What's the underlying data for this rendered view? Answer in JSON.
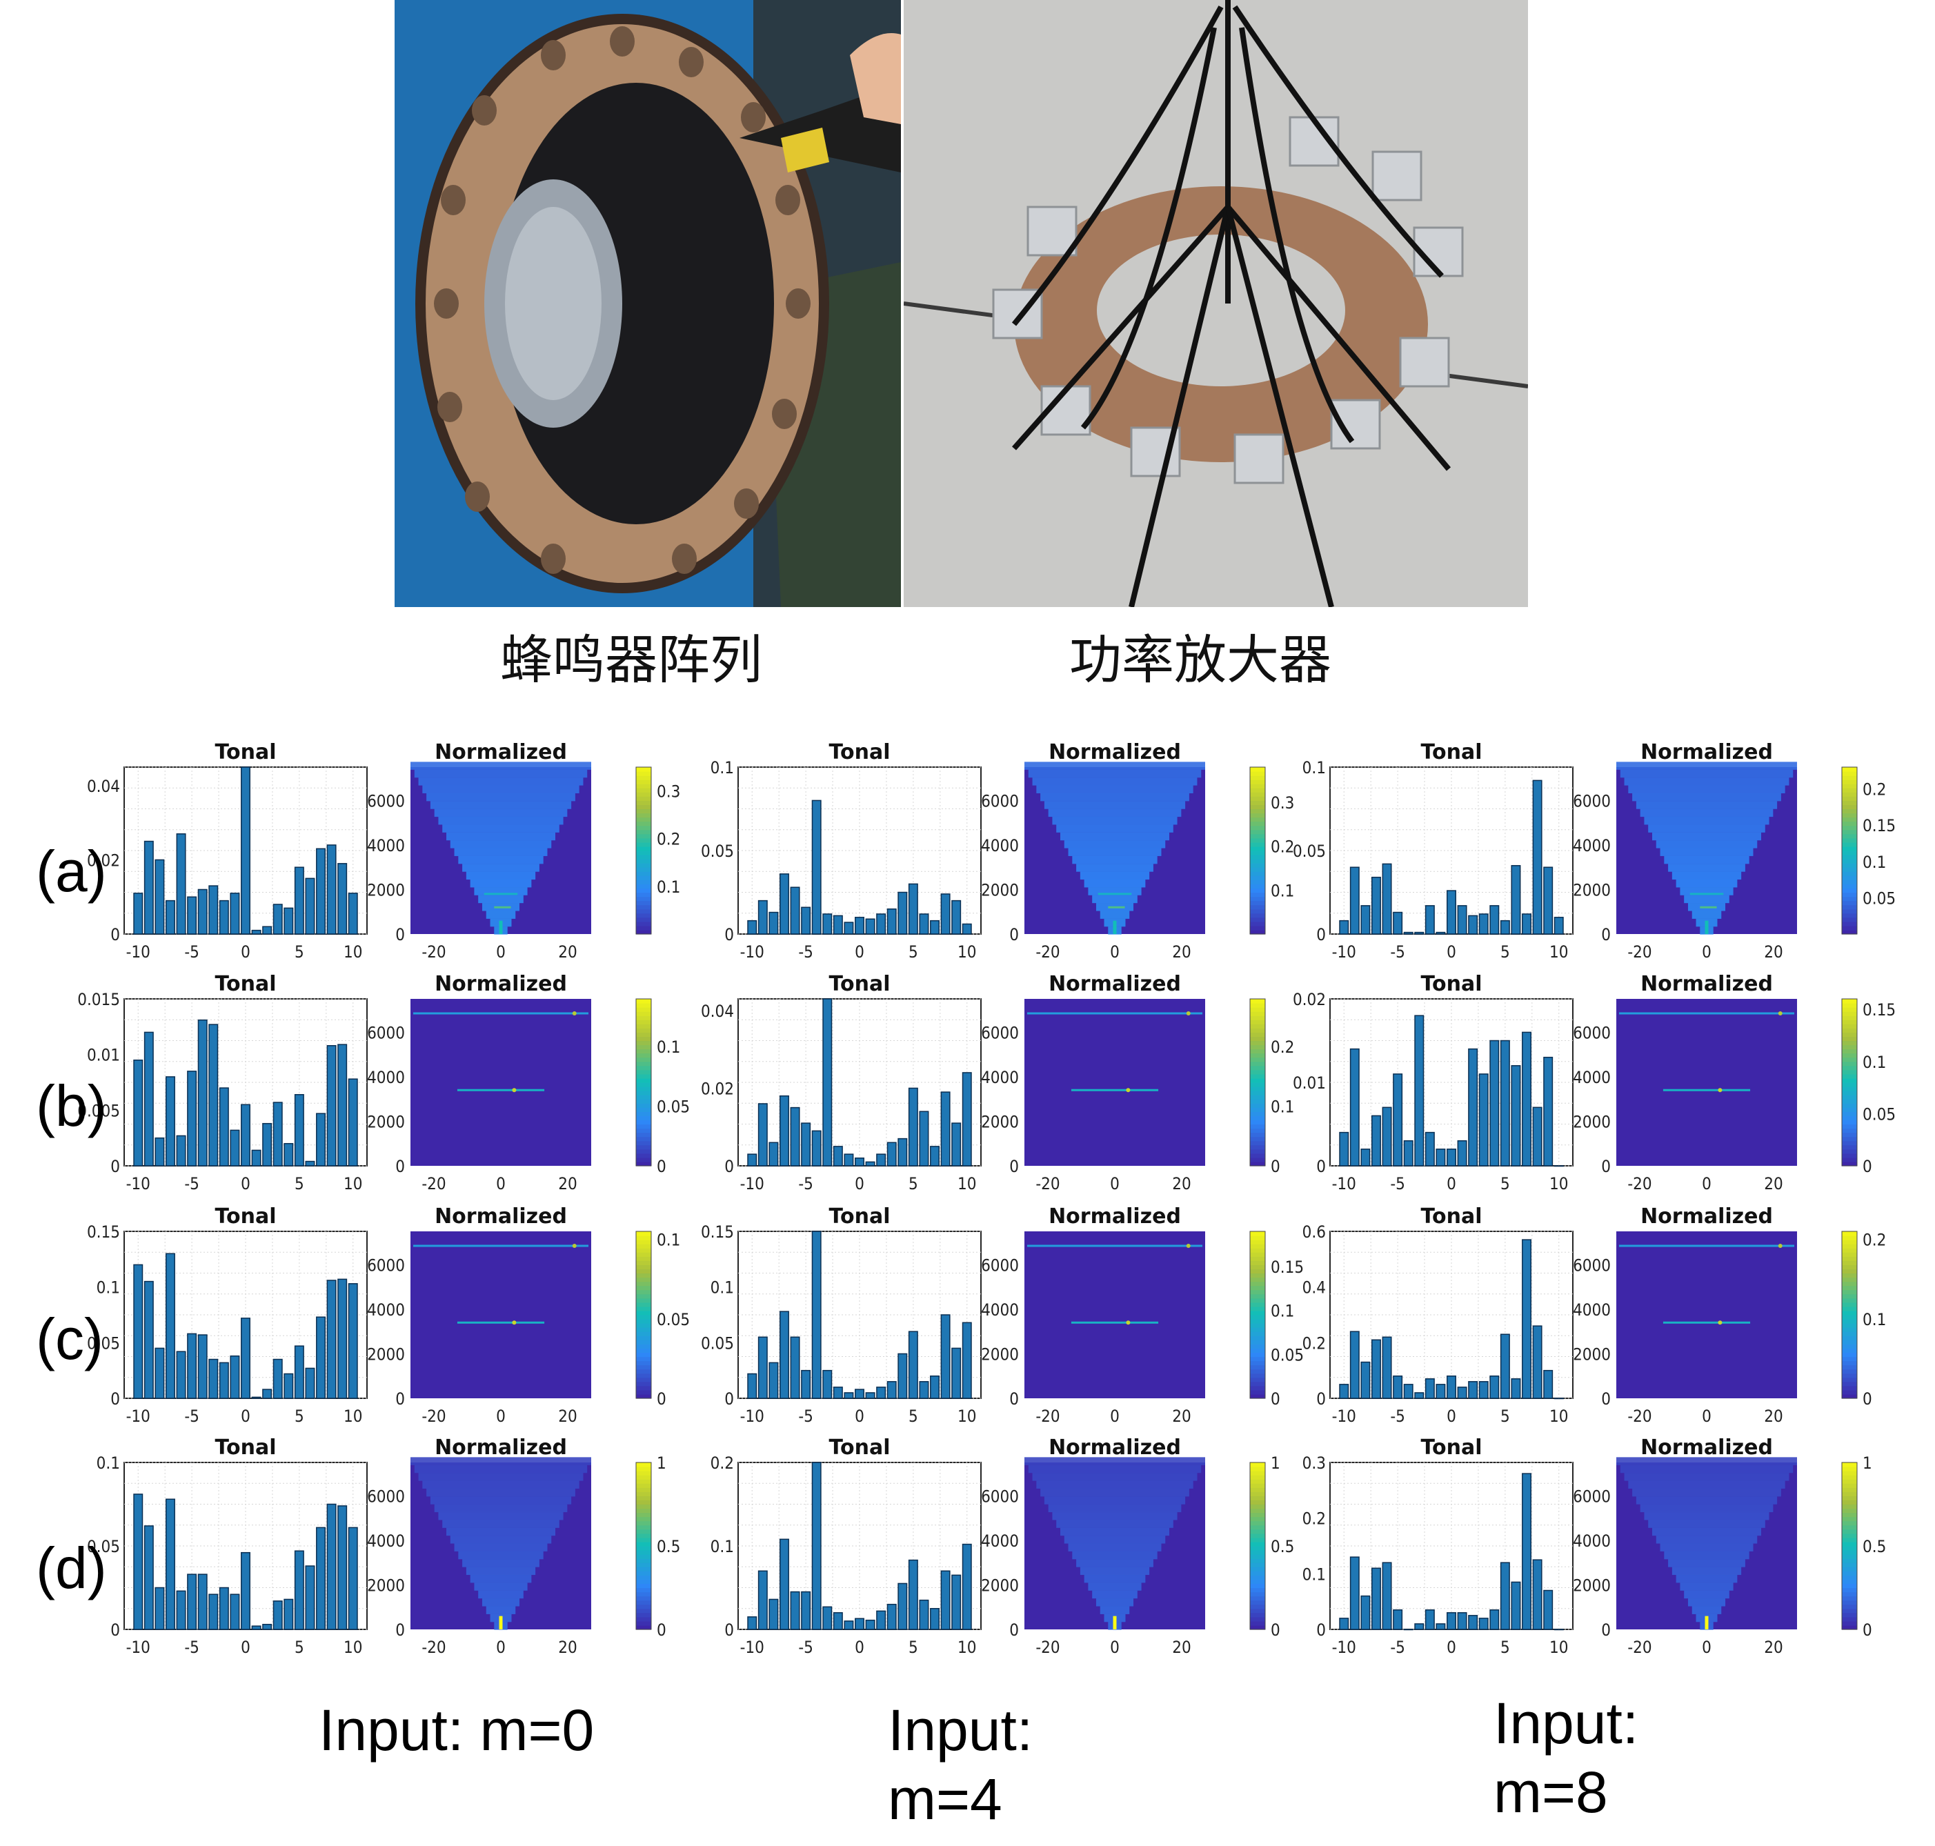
{
  "captions": {
    "left": "蜂鸣器阵列",
    "right": "功率放大器"
  },
  "row_labels": [
    "(a)",
    "(b)",
    "(c)",
    "(d)"
  ],
  "input_labels": [
    {
      "line1": "Input: m=0",
      "line2": ""
    },
    {
      "line1": "Input:",
      "line2": "m=4"
    },
    {
      "line1": "Input:",
      "line2": "m=8"
    }
  ],
  "colors": {
    "bar": "#1f77b4",
    "heat_bg": "#3e26a8"
  },
  "chart_data": {
    "type": "bar",
    "layout": "4 rows x 3 columns of paired panels (Tonal bar chart + Normalized heatmap)",
    "tonal_x_ticks": [
      "-10",
      "-5",
      "0",
      "5",
      "10"
    ],
    "heatmap_x_ticks": [
      "-20",
      "0",
      "20"
    ],
    "heatmap_y_ticks": [
      "0",
      "2000",
      "4000",
      "6000"
    ],
    "panels": [
      {
        "row": "(a)",
        "column": "m=0",
        "tonal": {
          "title": "Tonal",
          "x": [
            -10,
            -9,
            -8,
            -7,
            -6,
            -5,
            -4,
            -3,
            -2,
            -1,
            0,
            1,
            2,
            3,
            4,
            5,
            6,
            7,
            8,
            9,
            10
          ],
          "values": [
            0.011,
            0.025,
            0.02,
            0.009,
            0.027,
            0.01,
            0.012,
            0.013,
            0.009,
            0.011,
            0.045,
            0.001,
            0.002,
            0.008,
            0.007,
            0.018,
            0.015,
            0.023,
            0.024,
            0.019,
            0.011
          ],
          "ylim": [
            0,
            0.045
          ],
          "yticks": [
            "0",
            "0.02",
            "0.04"
          ]
        },
        "heatmap": {
          "title": "Normalized",
          "pattern": "v-shape",
          "colorbar_ticks": [
            "0.1",
            "0.2",
            "0.3"
          ],
          "cmax": 0.35
        }
      },
      {
        "row": "(a)",
        "column": "m=4",
        "tonal": {
          "title": "Tonal",
          "x": [
            -10,
            -9,
            -8,
            -7,
            -6,
            -5,
            -4,
            -3,
            -2,
            -1,
            0,
            1,
            2,
            3,
            4,
            5,
            6,
            7,
            8,
            9,
            10
          ],
          "values": [
            0.008,
            0.02,
            0.013,
            0.036,
            0.028,
            0.016,
            0.08,
            0.012,
            0.011,
            0.007,
            0.01,
            0.009,
            0.012,
            0.015,
            0.025,
            0.03,
            0.012,
            0.008,
            0.024,
            0.02,
            0.006
          ],
          "ylim": [
            0,
            0.1
          ],
          "yticks": [
            "0",
            "0.05",
            "0.1"
          ]
        },
        "heatmap": {
          "title": "Normalized",
          "pattern": "v-shape",
          "colorbar_ticks": [
            "0.1",
            "0.2",
            "0.3"
          ],
          "cmax": 0.38
        }
      },
      {
        "row": "(a)",
        "column": "m=8",
        "tonal": {
          "title": "Tonal",
          "x": [
            -10,
            -9,
            -8,
            -7,
            -6,
            -5,
            -4,
            -3,
            -2,
            -1,
            0,
            1,
            2,
            3,
            4,
            5,
            6,
            7,
            8,
            9,
            10
          ],
          "values": [
            0.008,
            0.04,
            0.017,
            0.034,
            0.042,
            0.013,
            0.001,
            0.001,
            0.017,
            0.001,
            0.026,
            0.017,
            0.011,
            0.012,
            0.017,
            0.008,
            0.041,
            0.012,
            0.092,
            0.04,
            0.01
          ],
          "ylim": [
            0,
            0.1
          ],
          "yticks": [
            "0",
            "0.05",
            "0.1"
          ]
        },
        "heatmap": {
          "title": "Normalized",
          "pattern": "v-shape",
          "colorbar_ticks": [
            "0.05",
            "0.1",
            "0.15",
            "0.2"
          ],
          "cmax": 0.23
        }
      },
      {
        "row": "(b)",
        "column": "m=0",
        "tonal": {
          "title": "Tonal",
          "x": [
            -10,
            -9,
            -8,
            -7,
            -6,
            -5,
            -4,
            -3,
            -2,
            -1,
            0,
            1,
            2,
            3,
            4,
            5,
            6,
            7,
            8,
            9,
            10
          ],
          "values": [
            0.0095,
            0.012,
            0.0025,
            0.008,
            0.0027,
            0.0085,
            0.0131,
            0.0127,
            0.007,
            0.0032,
            0.0055,
            0.0014,
            0.0038,
            0.0057,
            0.002,
            0.0064,
            0.0004,
            0.0047,
            0.0108,
            0.0109,
            0.0078
          ],
          "ylim": [
            0,
            0.015
          ],
          "yticks": [
            "0",
            "0.005",
            "0.01",
            "0.015"
          ]
        },
        "heatmap": {
          "title": "Normalized",
          "pattern": "lines",
          "colorbar_ticks": [
            "0",
            "0.05",
            "0.1"
          ],
          "cmax": 0.14
        }
      },
      {
        "row": "(b)",
        "column": "m=4",
        "tonal": {
          "title": "Tonal",
          "x": [
            -10,
            -9,
            -8,
            -7,
            -6,
            -5,
            -4,
            -3,
            -2,
            -1,
            0,
            1,
            2,
            3,
            4,
            5,
            6,
            7,
            8,
            9,
            10
          ],
          "values": [
            0.003,
            0.016,
            0.006,
            0.018,
            0.015,
            0.011,
            0.009,
            0.043,
            0.005,
            0.003,
            0.002,
            0.001,
            0.003,
            0.006,
            0.007,
            0.02,
            0.014,
            0.005,
            0.019,
            0.011,
            0.024
          ],
          "ylim": [
            0,
            0.043
          ],
          "yticks": [
            "0",
            "0.02",
            "0.04"
          ]
        },
        "heatmap": {
          "title": "Normalized",
          "pattern": "lines",
          "colorbar_ticks": [
            "0",
            "0.1",
            "0.2"
          ],
          "cmax": 0.28
        }
      },
      {
        "row": "(b)",
        "column": "m=8",
        "tonal": {
          "title": "Tonal",
          "x": [
            -10,
            -9,
            -8,
            -7,
            -6,
            -5,
            -4,
            -3,
            -2,
            -1,
            0,
            1,
            2,
            3,
            4,
            5,
            6,
            7,
            8,
            9,
            10
          ],
          "values": [
            0.004,
            0.014,
            0.002,
            0.006,
            0.007,
            0.011,
            0.003,
            0.018,
            0.004,
            0.002,
            0.002,
            0.003,
            0.014,
            0.011,
            0.015,
            0.015,
            0.012,
            0.016,
            0.007,
            0.013,
            0.0
          ],
          "ylim": [
            0,
            0.02
          ],
          "yticks": [
            "0",
            "0.01",
            "0.02"
          ]
        },
        "heatmap": {
          "title": "Normalized",
          "pattern": "lines",
          "colorbar_ticks": [
            "0",
            "0.05",
            "0.1",
            "0.15"
          ],
          "cmax": 0.16
        }
      },
      {
        "row": "(c)",
        "column": "m=0",
        "tonal": {
          "title": "Tonal",
          "x": [
            -10,
            -9,
            -8,
            -7,
            -6,
            -5,
            -4,
            -3,
            -2,
            -1,
            0,
            1,
            2,
            3,
            4,
            5,
            6,
            7,
            8,
            9,
            10
          ],
          "values": [
            0.12,
            0.105,
            0.045,
            0.13,
            0.042,
            0.058,
            0.057,
            0.035,
            0.032,
            0.038,
            0.072,
            0.001,
            0.008,
            0.035,
            0.022,
            0.047,
            0.027,
            0.073,
            0.106,
            0.107,
            0.103
          ],
          "ylim": [
            0,
            0.15
          ],
          "yticks": [
            "0",
            "0.05",
            "0.1",
            "0.15"
          ]
        },
        "heatmap": {
          "title": "Normalized",
          "pattern": "lines",
          "colorbar_ticks": [
            "0",
            "0.05",
            "0.1"
          ],
          "cmax": 0.105
        }
      },
      {
        "row": "(c)",
        "column": "m=4",
        "tonal": {
          "title": "Tonal",
          "x": [
            -10,
            -9,
            -8,
            -7,
            -6,
            -5,
            -4,
            -3,
            -2,
            -1,
            0,
            1,
            2,
            3,
            4,
            5,
            6,
            7,
            8,
            9,
            10
          ],
          "values": [
            0.022,
            0.055,
            0.032,
            0.078,
            0.055,
            0.025,
            0.15,
            0.025,
            0.01,
            0.005,
            0.008,
            0.005,
            0.01,
            0.015,
            0.04,
            0.06,
            0.015,
            0.02,
            0.075,
            0.045,
            0.068
          ],
          "ylim": [
            0,
            0.15
          ],
          "yticks": [
            "0",
            "0.05",
            "0.1",
            "0.15"
          ]
        },
        "heatmap": {
          "title": "Normalized",
          "pattern": "lines",
          "colorbar_ticks": [
            "0",
            "0.05",
            "0.1",
            "0.15"
          ],
          "cmax": 0.19
        }
      },
      {
        "row": "(c)",
        "column": "m=8",
        "tonal": {
          "title": "Tonal",
          "x": [
            -10,
            -9,
            -8,
            -7,
            -6,
            -5,
            -4,
            -3,
            -2,
            -1,
            0,
            1,
            2,
            3,
            4,
            5,
            6,
            7,
            8,
            9,
            10
          ],
          "values": [
            0.05,
            0.24,
            0.13,
            0.21,
            0.22,
            0.08,
            0.05,
            0.02,
            0.07,
            0.05,
            0.08,
            0.04,
            0.06,
            0.06,
            0.08,
            0.23,
            0.07,
            0.57,
            0.26,
            0.1,
            0.0
          ],
          "ylim": [
            0,
            0.6
          ],
          "yticks": [
            "0",
            "0.2",
            "0.4",
            "0.6"
          ]
        },
        "heatmap": {
          "title": "Normalized",
          "pattern": "lines",
          "colorbar_ticks": [
            "0",
            "0.1",
            "0.2"
          ],
          "cmax": 0.21
        }
      },
      {
        "row": "(d)",
        "column": "m=0",
        "tonal": {
          "title": "Tonal",
          "x": [
            -10,
            -9,
            -8,
            -7,
            -6,
            -5,
            -4,
            -3,
            -2,
            -1,
            0,
            1,
            2,
            3,
            4,
            5,
            6,
            7,
            8,
            9,
            10
          ],
          "values": [
            0.081,
            0.062,
            0.025,
            0.078,
            0.023,
            0.033,
            0.033,
            0.021,
            0.025,
            0.021,
            0.046,
            0.002,
            0.003,
            0.017,
            0.018,
            0.047,
            0.038,
            0.061,
            0.075,
            0.074,
            0.061
          ],
          "ylim": [
            0,
            0.1
          ],
          "yticks": [
            "0",
            "0.05",
            "0.1"
          ]
        },
        "heatmap": {
          "title": "Normalized",
          "pattern": "v-shape",
          "colorbar_ticks": [
            "0",
            "0.5",
            "1"
          ],
          "cmax": 1
        }
      },
      {
        "row": "(d)",
        "column": "m=4",
        "tonal": {
          "title": "Tonal",
          "x": [
            -10,
            -9,
            -8,
            -7,
            -6,
            -5,
            -4,
            -3,
            -2,
            -1,
            0,
            1,
            2,
            3,
            4,
            5,
            6,
            7,
            8,
            9,
            10
          ],
          "values": [
            0.015,
            0.07,
            0.036,
            0.108,
            0.045,
            0.045,
            0.2,
            0.027,
            0.02,
            0.01,
            0.013,
            0.011,
            0.022,
            0.03,
            0.055,
            0.083,
            0.035,
            0.025,
            0.07,
            0.065,
            0.102
          ],
          "ylim": [
            0,
            0.2
          ],
          "yticks": [
            "0",
            "0.1",
            "0.2"
          ]
        },
        "heatmap": {
          "title": "Normalized",
          "pattern": "v-shape",
          "colorbar_ticks": [
            "0",
            "0.5",
            "1"
          ],
          "cmax": 1
        }
      },
      {
        "row": "(d)",
        "column": "m=8",
        "tonal": {
          "title": "Tonal",
          "x": [
            -10,
            -9,
            -8,
            -7,
            -6,
            -5,
            -4,
            -3,
            -2,
            -1,
            0,
            1,
            2,
            3,
            4,
            5,
            6,
            7,
            8,
            9,
            10
          ],
          "values": [
            0.02,
            0.13,
            0.06,
            0.11,
            0.12,
            0.035,
            0.0,
            0.01,
            0.035,
            0.01,
            0.03,
            0.03,
            0.025,
            0.02,
            0.035,
            0.12,
            0.085,
            0.28,
            0.125,
            0.07,
            0.0
          ],
          "ylim": [
            0,
            0.3
          ],
          "yticks": [
            "0",
            "0.1",
            "0.2",
            "0.3"
          ]
        },
        "heatmap": {
          "title": "Normalized",
          "pattern": "v-shape",
          "colorbar_ticks": [
            "0",
            "0.5",
            "1"
          ],
          "cmax": 1
        }
      }
    ]
  }
}
